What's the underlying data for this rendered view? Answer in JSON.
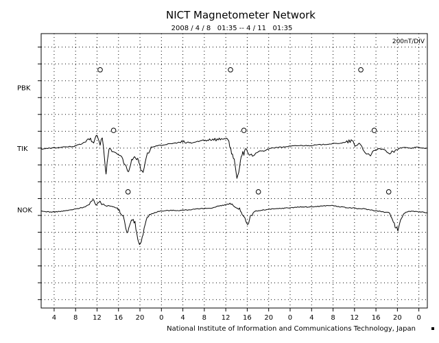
{
  "chart_data": {
    "type": "line",
    "title": "NICT Magnetometer Network",
    "subtitle": "2008 / 4 / 8   01:35 -- 4 / 11   01:35",
    "scale_label": "200nT/DIV",
    "credit": "National Institute of Information and Communications Technology, Japan",
    "grid": true,
    "grid_style": "dotted",
    "x_unit": "hours UT (2008-04-08 01:35 to 2008-04-11 01:35)",
    "xlim": [
      0,
      72
    ],
    "x_tick_labels": [
      "4",
      "8",
      "12",
      "16",
      "20",
      "0",
      "4",
      "8",
      "12",
      "16",
      "20",
      "0",
      "4",
      "8",
      "12",
      "16",
      "20",
      "0"
    ],
    "x_tick_hours": [
      2.42,
      6.42,
      10.42,
      14.42,
      18.42,
      22.42,
      26.42,
      30.42,
      34.42,
      38.42,
      42.42,
      46.42,
      50.42,
      54.42,
      58.42,
      62.42,
      66.42,
      70.42
    ],
    "y_unit": "divisions (1 DIV = 200 nT)",
    "ylim": [
      -3.5,
      12.8
    ],
    "series": [
      {
        "name": "PBK",
        "baseline_div": 9.6,
        "x": [],
        "y": [],
        "local_midnight_markers_h": [
          11.0,
          35.3,
          59.6
        ]
      },
      {
        "name": "TIK",
        "baseline_div": 6.0,
        "x": [
          0,
          4,
          6,
          7.5,
          8.5,
          9.0,
          9.8,
          10.2,
          10.6,
          11.0,
          11.4,
          11.8,
          12.1,
          12.3,
          12.5,
          12.8,
          13.2,
          14.0,
          15.0,
          15.8,
          16.3,
          16.7,
          17.2,
          17.8,
          18.2,
          18.6,
          19.0,
          19.6,
          20.5,
          22,
          24,
          26,
          28,
          30,
          32,
          33,
          34,
          35,
          35.5,
          36,
          36.5,
          37.0,
          37.3,
          37.6,
          37.8,
          38.0,
          38.3,
          38.6,
          39.0,
          40,
          41,
          41.5,
          42,
          43,
          44,
          45,
          46,
          48,
          50,
          52,
          54,
          56,
          57,
          58,
          58.5,
          59,
          59.3,
          59.6,
          60,
          60.5,
          61,
          61.4,
          62,
          63,
          64,
          65,
          66,
          67,
          68,
          69,
          70,
          71,
          72
        ],
        "y": [
          -0.05,
          0.05,
          0.1,
          0.25,
          0.4,
          0.55,
          0.3,
          0.8,
          0.6,
          0.2,
          0.7,
          -0.5,
          -1.6,
          -0.8,
          -0.4,
          0.1,
          -0.2,
          -0.3,
          -0.5,
          -1.1,
          -1.4,
          -0.9,
          -0.5,
          -0.6,
          -0.8,
          -1.3,
          -1.4,
          -0.5,
          0.05,
          0.15,
          0.25,
          0.35,
          0.3,
          0.45,
          0.55,
          0.5,
          0.6,
          0.4,
          -0.3,
          -0.6,
          -1.9,
          -1.2,
          -0.5,
          -0.2,
          -0.4,
          -0.1,
          0.0,
          -0.3,
          -0.5,
          -0.3,
          -0.15,
          -0.2,
          -0.1,
          0.0,
          0.05,
          0.05,
          0.1,
          0.15,
          0.15,
          0.2,
          0.25,
          0.3,
          0.35,
          0.45,
          0.1,
          0.2,
          0.3,
          0.2,
          -0.1,
          -0.3,
          -0.4,
          -0.5,
          -0.15,
          -0.05,
          -0.1,
          -0.35,
          -0.15,
          0.0,
          0.05,
          0.0,
          0.05,
          0.0,
          0.0
        ],
        "local_midnight_markers_h": [
          13.5,
          37.8,
          62.1
        ]
      },
      {
        "name": "NOK",
        "baseline_div": 2.35,
        "x": [
          0,
          2,
          4,
          6,
          8,
          9,
          9.8,
          10.2,
          10.8,
          11.3,
          11.8,
          12.5,
          13.2,
          14.2,
          15.3,
          16.0,
          16.5,
          17.0,
          17.5,
          18.0,
          18.5,
          19.0,
          19.6,
          20.2,
          21,
          22,
          24,
          26,
          28,
          30,
          32,
          33,
          34,
          35,
          36,
          37,
          37.5,
          38,
          38.5,
          39,
          39.5,
          40,
          41,
          42,
          44,
          46,
          48,
          50,
          52,
          54,
          56,
          57,
          58,
          59,
          60,
          61,
          62,
          63,
          64,
          65,
          65.5,
          66,
          66.5,
          67,
          67.5,
          68,
          69,
          70,
          71,
          72
        ],
        "y": [
          -0.1,
          -0.15,
          -0.1,
          0.0,
          0.15,
          0.3,
          0.55,
          0.35,
          0.45,
          0.3,
          0.35,
          0.25,
          0.2,
          0.05,
          -0.4,
          -1.4,
          -0.9,
          -0.6,
          -0.8,
          -1.8,
          -2.1,
          -1.4,
          -0.6,
          -0.3,
          -0.2,
          -0.1,
          -0.05,
          -0.05,
          0.0,
          0.05,
          0.1,
          0.2,
          0.25,
          0.35,
          0.15,
          0.0,
          -0.3,
          -0.5,
          -0.9,
          -0.4,
          -0.2,
          -0.1,
          -0.05,
          0.0,
          0.05,
          0.1,
          0.15,
          0.15,
          0.2,
          0.25,
          0.15,
          0.1,
          0.1,
          0.05,
          0.05,
          0.0,
          -0.05,
          -0.1,
          -0.15,
          -0.2,
          -0.5,
          -1.0,
          -1.2,
          -0.6,
          -0.3,
          -0.15,
          -0.1,
          -0.1,
          -0.15,
          -0.2
        ],
        "local_midnight_markers_h": [
          16.2,
          40.5,
          64.8
        ]
      }
    ]
  }
}
